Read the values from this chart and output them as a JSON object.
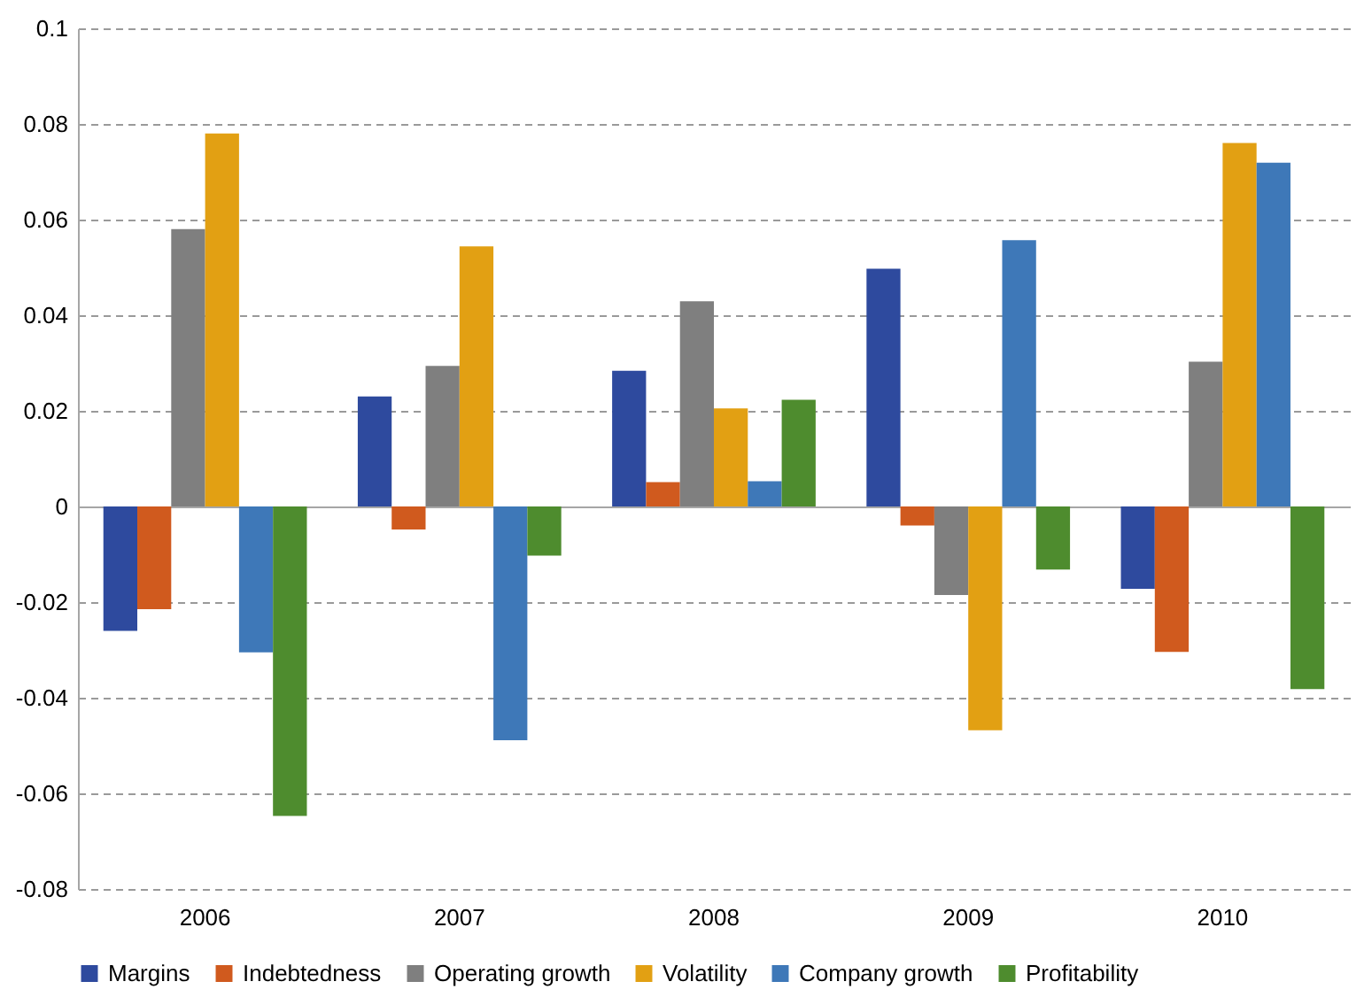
{
  "chart_data": {
    "type": "bar",
    "categories": [
      "2006",
      "2007",
      "2008",
      "2009",
      "2010"
    ],
    "series": [
      {
        "name": "Margins",
        "color": "#2e4a9e",
        "values": [
          -0.026,
          0.023,
          0.0284,
          0.0497,
          -0.0172
        ]
      },
      {
        "name": "Indebtedness",
        "color": "#d05a1e",
        "values": [
          -0.0215,
          -0.0048,
          0.0051,
          -0.004,
          -0.0304
        ]
      },
      {
        "name": "Operating growth",
        "color": "#7f7f7f",
        "values": [
          0.058,
          0.0294,
          0.0429,
          -0.0185,
          0.0303
        ]
      },
      {
        "name": "Volatility",
        "color": "#e2a013",
        "values": [
          0.078,
          0.0544,
          0.0205,
          -0.0468,
          0.076
        ]
      },
      {
        "name": "Company growth",
        "color": "#3e78b8",
        "values": [
          -0.0305,
          -0.0489,
          0.0053,
          0.0557,
          0.0719
        ]
      },
      {
        "name": "Profitability",
        "color": "#4e8c2e",
        "values": [
          -0.0647,
          -0.0103,
          0.0223,
          -0.0132,
          -0.0382
        ]
      }
    ],
    "ylim": [
      -0.08,
      0.1
    ],
    "yticks": [
      -0.08,
      -0.06,
      -0.04,
      -0.02,
      0,
      0.02,
      0.04,
      0.06,
      0.08,
      0.1
    ],
    "grid": "y",
    "legend": "bottom"
  }
}
